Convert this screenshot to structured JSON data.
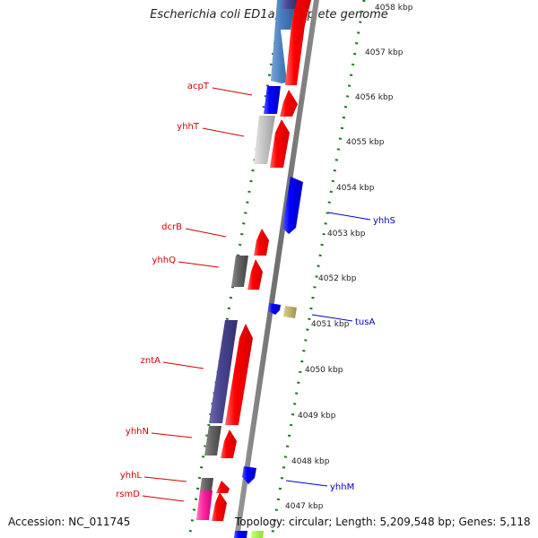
{
  "title": "Escherichia coli ED1a, complete genome",
  "footer": {
    "accession": "Accession: NC_011745",
    "summary": "Topology: circular; Length: 5,209,548 bp; Genes: 5,118"
  },
  "colors": {
    "forward_label": "#d40000",
    "reverse_label": "#0000cc",
    "tick_dots": "#1a7a1a"
  },
  "kbp_labels": [
    "4058 kbp",
    "4057 kbp",
    "4056 kbp",
    "4055 kbp",
    "4054 kbp",
    "4053 kbp",
    "4052 kbp",
    "4051 kbp",
    "4050 kbp",
    "4049 kbp",
    "4048 kbp",
    "4047 kbp"
  ],
  "gene_labels": [
    {
      "text": "acpT",
      "strand": "forward"
    },
    {
      "text": "yhhT",
      "strand": "forward"
    },
    {
      "text": "dcrB",
      "strand": "forward"
    },
    {
      "text": "yhhQ",
      "strand": "forward"
    },
    {
      "text": "zntA",
      "strand": "forward"
    },
    {
      "text": "yhhN",
      "strand": "forward"
    },
    {
      "text": "yhhL",
      "strand": "forward"
    },
    {
      "text": "rsmD",
      "strand": "forward"
    },
    {
      "text": "yhhS",
      "strand": "reverse"
    },
    {
      "text": "tusA",
      "strand": "reverse"
    },
    {
      "text": "yhhM",
      "strand": "reverse"
    }
  ]
}
